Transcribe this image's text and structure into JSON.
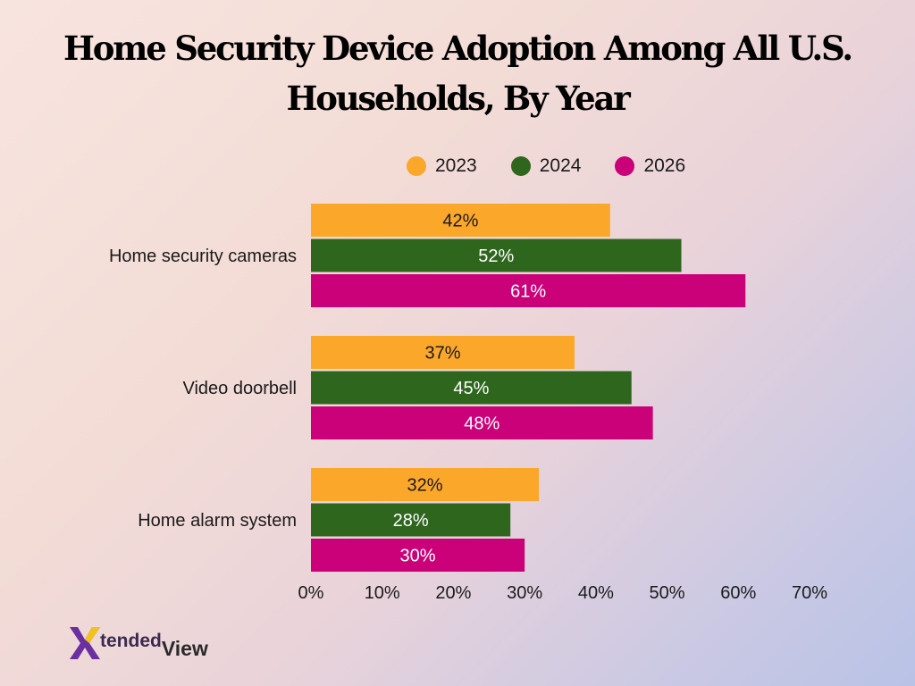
{
  "title": "Home Security Device Adoption Among All U.S. Households, By Year",
  "colors": {
    "2023": "#FBA72A",
    "2024": "#2E661E",
    "2026": "#CB0179"
  },
  "logo": {
    "part1": "tended",
    "part2": "View"
  },
  "chart_data": {
    "type": "bar",
    "orientation": "horizontal",
    "categories": [
      "Home security cameras",
      "Video doorbell",
      "Home alarm system"
    ],
    "series": [
      {
        "name": "2023",
        "values": [
          42,
          37,
          32
        ],
        "labels": [
          "42%",
          "37%",
          "32%"
        ]
      },
      {
        "name": "2024",
        "values": [
          52,
          45,
          28
        ],
        "labels": [
          "52%",
          "45%",
          "28%"
        ]
      },
      {
        "name": "2026",
        "values": [
          61,
          48,
          30
        ],
        "labels": [
          "61%",
          "48%",
          "30%"
        ]
      }
    ],
    "xlim": [
      0,
      70
    ],
    "xticks": [
      "0%",
      "10%",
      "20%",
      "30%",
      "40%",
      "50%",
      "60%",
      "70%"
    ],
    "legend_position": "top",
    "grid": false
  }
}
